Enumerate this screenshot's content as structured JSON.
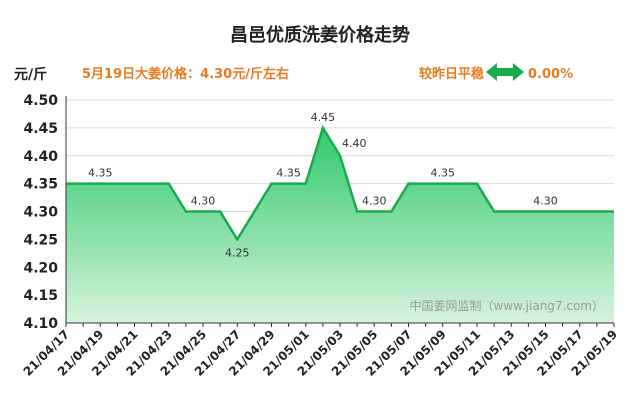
{
  "chart_data": {
    "type": "area",
    "title": "昌邑优质洗姜价格走势",
    "ylabel": "元/斤",
    "subtitle_price": "5月19日大姜价格：4.30元/斤左右",
    "subtitle_change": "较昨日平稳",
    "change_value": "0.00%",
    "watermark": "中国姜网监制（www.jiang7.com）",
    "ylim": [
      4.1,
      4.5
    ],
    "yticks": [
      "4.50",
      "4.45",
      "4.40",
      "4.35",
      "4.30",
      "4.25",
      "4.20",
      "4.15",
      "4.10"
    ],
    "xticks": [
      "21/04/17",
      "21/04/19",
      "21/04/21",
      "21/04/23",
      "21/04/25",
      "21/04/27",
      "21/04/29",
      "21/05/01",
      "21/05/03",
      "21/05/05",
      "21/05/07",
      "21/05/09",
      "21/05/11",
      "21/05/13",
      "21/05/15",
      "21/05/17",
      "21/05/19"
    ],
    "x": [
      "21/04/17",
      "21/04/18",
      "21/04/19",
      "21/04/20",
      "21/04/21",
      "21/04/22",
      "21/04/23",
      "21/04/24",
      "21/04/25",
      "21/04/26",
      "21/04/27",
      "21/04/28",
      "21/04/29",
      "21/04/30",
      "21/05/01",
      "21/05/02",
      "21/05/03",
      "21/05/04",
      "21/05/05",
      "21/05/06",
      "21/05/07",
      "21/05/08",
      "21/05/09",
      "21/05/10",
      "21/05/11",
      "21/05/12",
      "21/05/13",
      "21/05/14",
      "21/05/15",
      "21/05/16",
      "21/05/17",
      "21/05/18",
      "21/05/19"
    ],
    "values": [
      4.35,
      4.35,
      4.35,
      4.35,
      4.35,
      4.35,
      4.35,
      4.3,
      4.3,
      4.3,
      4.25,
      4.3,
      4.35,
      4.35,
      4.35,
      4.45,
      4.4,
      4.3,
      4.3,
      4.3,
      4.35,
      4.35,
      4.35,
      4.35,
      4.35,
      4.3,
      4.3,
      4.3,
      4.3,
      4.3,
      4.3,
      4.3,
      4.3
    ],
    "data_labels": [
      {
        "index": 2,
        "text": "4.35",
        "position": "above"
      },
      {
        "index": 8,
        "text": "4.30",
        "position": "above"
      },
      {
        "index": 10,
        "text": "4.25",
        "position": "below"
      },
      {
        "index": 13,
        "text": "4.35",
        "position": "above"
      },
      {
        "index": 15,
        "text": "4.45",
        "position": "above"
      },
      {
        "index": 16,
        "text": "4.40",
        "position": "above-right"
      },
      {
        "index": 18,
        "text": "4.30",
        "position": "above"
      },
      {
        "index": 22,
        "text": "4.35",
        "position": "above"
      },
      {
        "index": 28,
        "text": "4.30",
        "position": "above"
      }
    ],
    "grid": true,
    "colors": {
      "line": "#1aab4e",
      "fill_top": "#2ec96b",
      "fill_bottom": "#d8f3dc",
      "title": "#222222",
      "subtitle": "#e87b1e",
      "arrow": "#1aab4e",
      "grid": "#d9d9d9",
      "watermark": "#9a9a9a"
    }
  }
}
